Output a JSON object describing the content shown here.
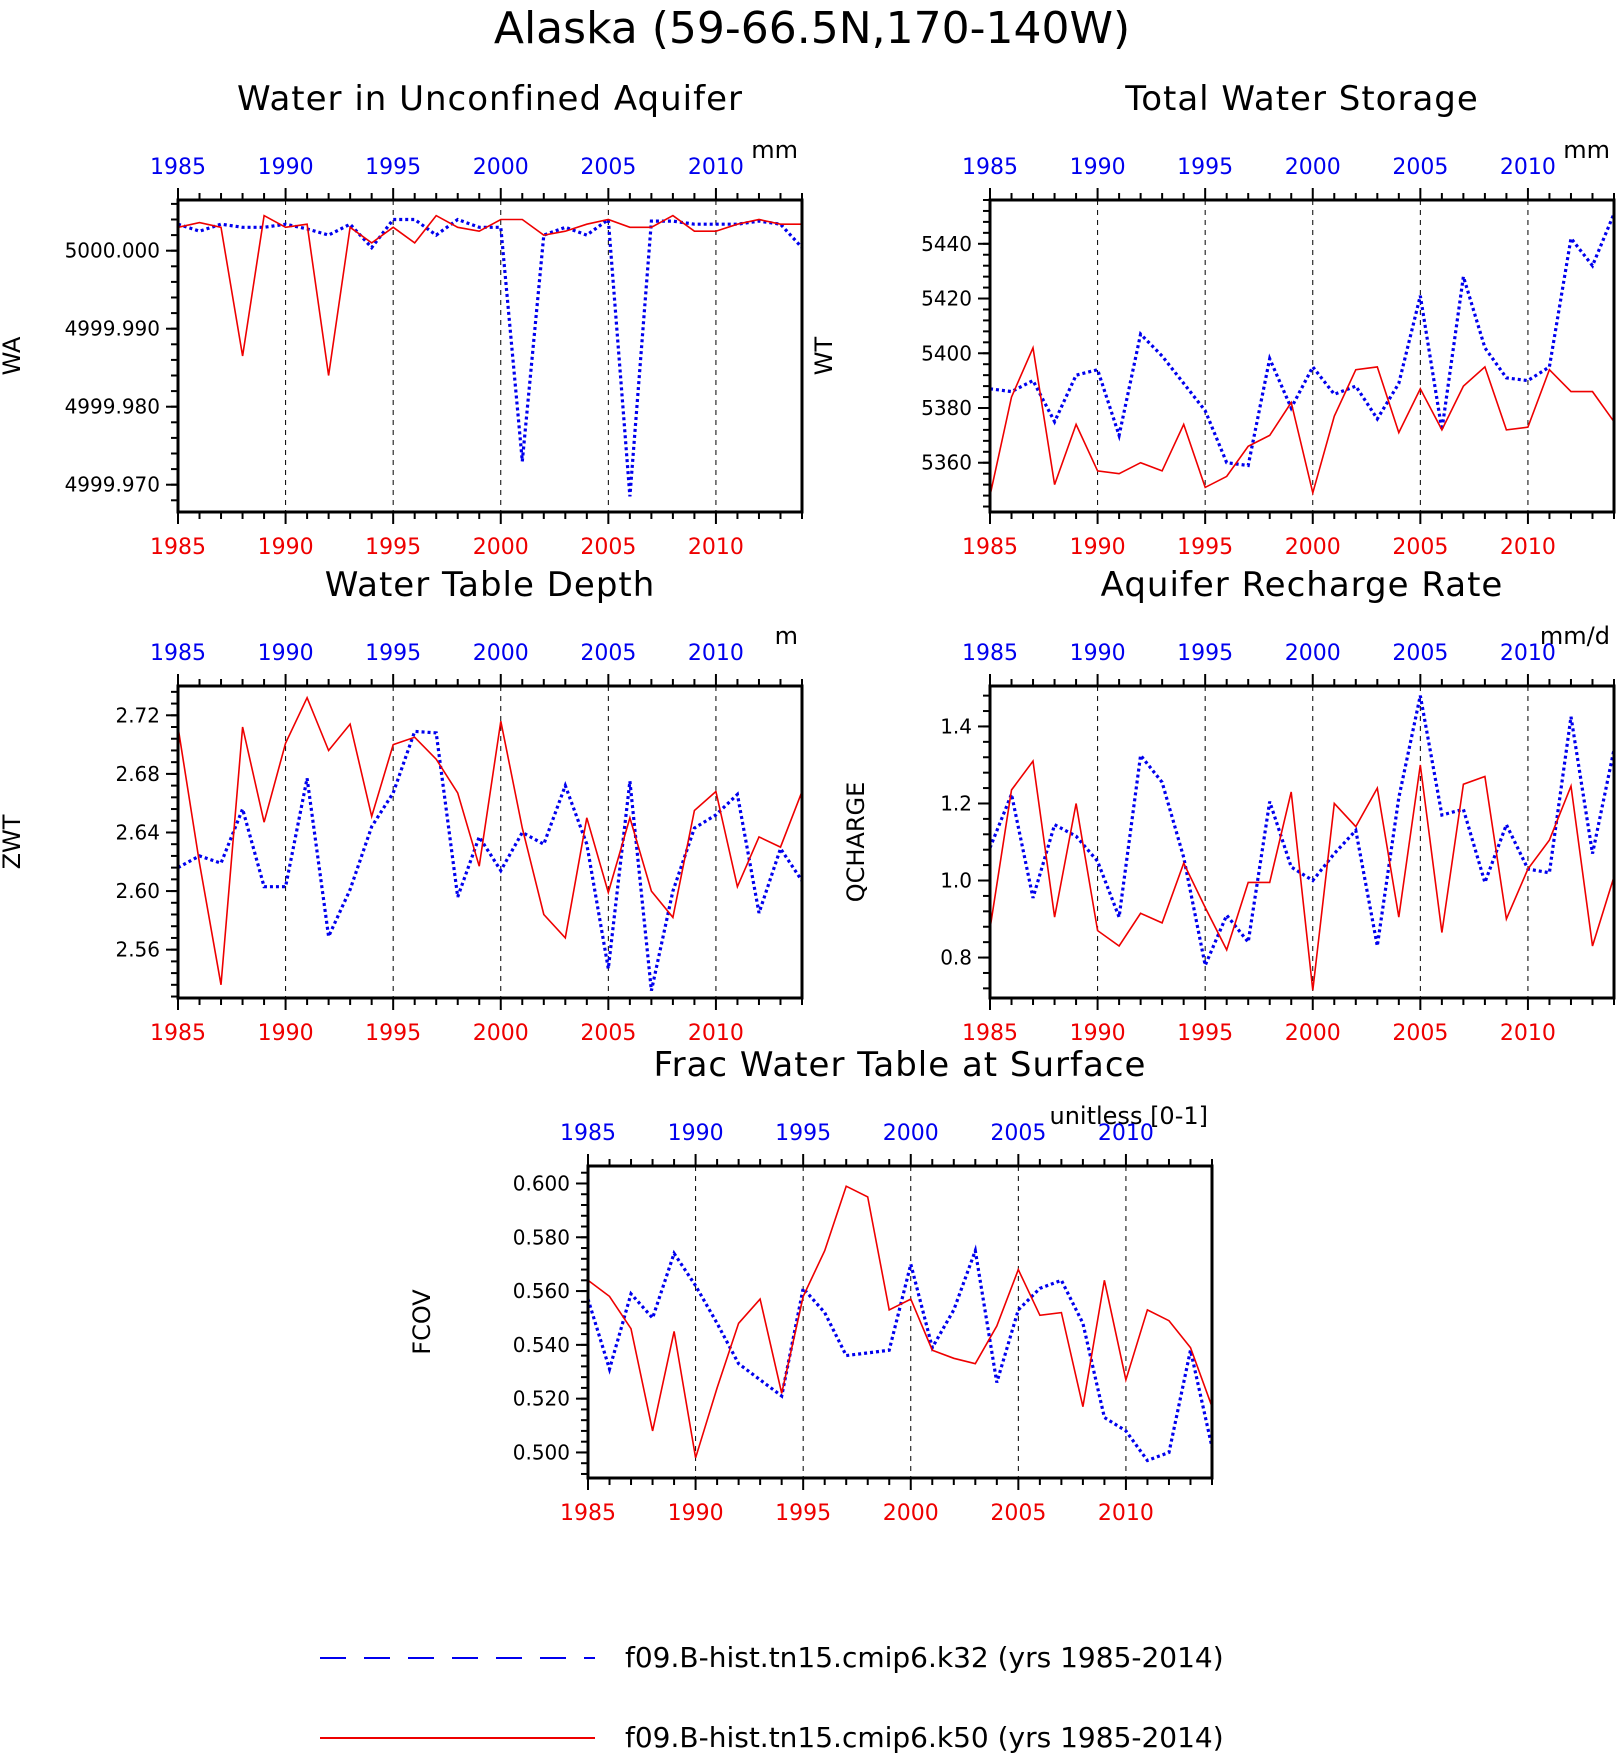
{
  "title": "Alaska (59-66.5N,170-140W)",
  "colors": {
    "k32": "#0000ee",
    "k50": "#ee0000",
    "axis": "#000000"
  },
  "legend": [
    {
      "key": "k32",
      "label": "f09.B-hist.tn15.cmip6.k32 (yrs 1985-2014)",
      "style": "dashed"
    },
    {
      "key": "k50",
      "label": "f09.B-hist.tn15.cmip6.k50 (yrs 1985-2014)",
      "style": "solid"
    }
  ],
  "chart_data": [
    {
      "type": "line",
      "title": "Water in Unconfined Aquifer",
      "units": "mm",
      "ylabel": "WA",
      "xlim": [
        1985,
        2014
      ],
      "ylim": [
        4999.9665,
        5000.0065
      ],
      "yticks": [
        4999.97,
        4999.98,
        4999.99,
        5000.0
      ],
      "ytick_labels": [
        "4999.970",
        "4999.980",
        "4999.990",
        "5000.000"
      ],
      "xticks": [
        1985,
        1990,
        1995,
        2000,
        2005,
        2010
      ],
      "x": [
        1985,
        1986,
        1987,
        1988,
        1989,
        1990,
        1991,
        1992,
        1993,
        1994,
        1995,
        1996,
        1997,
        1998,
        1999,
        2000,
        2001,
        2002,
        2003,
        2004,
        2005,
        2006,
        2007,
        2008,
        2009,
        2010,
        2011,
        2012,
        2013,
        2014
      ],
      "series": [
        {
          "key": "k32",
          "values": [
            5000.0034,
            5000.0025,
            5000.0034,
            5000.003,
            5000.003,
            5000.0034,
            5000.0028,
            5000.002,
            5000.0034,
            5000.0004,
            5000.004,
            5000.004,
            5000.002,
            5000.004,
            5000.003,
            5000.003,
            4999.973,
            5000.002,
            5000.003,
            5000.002,
            5000.004,
            4999.9685,
            5000.0038,
            5000.0038,
            5000.0034,
            5000.0034,
            5000.0034,
            5000.0038,
            5000.0034,
            5000.0004
          ]
        },
        {
          "key": "k50",
          "values": [
            5000.003,
            5000.0036,
            5000.003,
            4999.9865,
            5000.0045,
            5000.003,
            5000.0034,
            4999.984,
            5000.003,
            5000.001,
            5000.003,
            5000.001,
            5000.0045,
            5000.003,
            5000.0025,
            5000.004,
            5000.004,
            5000.002,
            5000.0025,
            5000.0034,
            5000.004,
            5000.003,
            5000.003,
            5000.0045,
            5000.0025,
            5000.0025,
            5000.0034,
            5000.004,
            5000.0034,
            5000.0034
          ]
        }
      ]
    },
    {
      "type": "line",
      "title": "Total Water Storage",
      "units": "mm",
      "ylabel": "WT",
      "xlim": [
        1985,
        2014
      ],
      "ylim": [
        5342,
        5456
      ],
      "yticks": [
        5360,
        5380,
        5400,
        5420,
        5440
      ],
      "ytick_labels": [
        "5360",
        "5380",
        "5400",
        "5420",
        "5440"
      ],
      "xticks": [
        1985,
        1990,
        1995,
        2000,
        2005,
        2010
      ],
      "x": [
        1985,
        1986,
        1987,
        1988,
        1989,
        1990,
        1991,
        1992,
        1993,
        1994,
        1995,
        1996,
        1997,
        1998,
        1999,
        2000,
        2001,
        2002,
        2003,
        2004,
        2005,
        2006,
        2007,
        2008,
        2009,
        2010,
        2011,
        2012,
        2013,
        2014
      ],
      "series": [
        {
          "key": "k32",
          "values": [
            5387,
            5386,
            5390,
            5375,
            5392,
            5394,
            5370,
            5407,
            5399,
            5389,
            5379,
            5360,
            5359,
            5398,
            5380,
            5395,
            5385,
            5388,
            5376,
            5389,
            5421,
            5372,
            5428,
            5402,
            5391,
            5390,
            5395,
            5442,
            5432,
            5451
          ]
        },
        {
          "key": "k50",
          "values": [
            5348,
            5384,
            5402,
            5352,
            5374,
            5357,
            5356,
            5360,
            5357,
            5374,
            5351,
            5355,
            5366,
            5370,
            5382,
            5349,
            5377,
            5394,
            5395,
            5371,
            5387,
            5372,
            5388,
            5395,
            5372,
            5373,
            5394,
            5386,
            5386,
            5375
          ]
        }
      ]
    },
    {
      "type": "line",
      "title": "Water Table Depth",
      "units": "m",
      "ylabel": "ZWT",
      "xlim": [
        1985,
        2014
      ],
      "ylim": [
        2.527,
        2.74
      ],
      "yticks": [
        2.56,
        2.6,
        2.64,
        2.68,
        2.72
      ],
      "ytick_labels": [
        "2.56",
        "2.60",
        "2.64",
        "2.68",
        "2.72"
      ],
      "xticks": [
        1985,
        1990,
        1995,
        2000,
        2005,
        2010
      ],
      "x": [
        1985,
        1986,
        1987,
        1988,
        1989,
        1990,
        1991,
        1992,
        1993,
        1994,
        1995,
        1996,
        1997,
        1998,
        1999,
        2000,
        2001,
        2002,
        2003,
        2004,
        2005,
        2006,
        2007,
        2008,
        2009,
        2010,
        2011,
        2012,
        2013,
        2014
      ],
      "series": [
        {
          "key": "k32",
          "values": [
            2.616,
            2.624,
            2.619,
            2.656,
            2.603,
            2.603,
            2.677,
            2.569,
            2.601,
            2.644,
            2.667,
            2.709,
            2.708,
            2.596,
            2.637,
            2.614,
            2.64,
            2.632,
            2.672,
            2.632,
            2.547,
            2.675,
            2.532,
            2.6,
            2.643,
            2.652,
            2.666,
            2.585,
            2.629,
            2.607
          ]
        },
        {
          "key": "k50",
          "values": [
            2.712,
            2.619,
            2.536,
            2.712,
            2.647,
            2.701,
            2.732,
            2.696,
            2.714,
            2.651,
            2.7,
            2.705,
            2.69,
            2.667,
            2.617,
            2.716,
            2.643,
            2.584,
            2.568,
            2.65,
            2.599,
            2.65,
            2.6,
            2.582,
            2.655,
            2.668,
            2.603,
            2.637,
            2.63,
            2.668
          ]
        }
      ]
    },
    {
      "type": "line",
      "title": "Aquifer Recharge Rate",
      "units": "mm/d",
      "ylabel": "QCHARGE",
      "xlim": [
        1985,
        2014
      ],
      "ylim": [
        0.695,
        1.505
      ],
      "yticks": [
        0.8,
        1.0,
        1.2,
        1.4
      ],
      "ytick_labels": [
        "0.8",
        "1.0",
        "1.2",
        "1.4"
      ],
      "xticks": [
        1985,
        1990,
        1995,
        2000,
        2005,
        2010
      ],
      "x": [
        1985,
        1986,
        1987,
        1988,
        1989,
        1990,
        1991,
        1992,
        1993,
        1994,
        1995,
        1996,
        1997,
        1998,
        1999,
        2000,
        2001,
        2002,
        2003,
        2004,
        2005,
        2006,
        2007,
        2008,
        2009,
        2010,
        2011,
        2012,
        2013,
        2014
      ],
      "series": [
        {
          "key": "k32",
          "values": [
            1.085,
            1.224,
            0.955,
            1.145,
            1.115,
            1.05,
            0.905,
            1.325,
            1.255,
            1.06,
            0.78,
            0.91,
            0.84,
            1.205,
            1.035,
            1.0,
            1.07,
            1.13,
            0.83,
            1.215,
            1.48,
            1.17,
            1.185,
            0.995,
            1.145,
            1.03,
            1.02,
            1.425,
            1.07,
            1.34
          ]
        },
        {
          "key": "k50",
          "values": [
            0.875,
            1.235,
            1.31,
            0.905,
            1.2,
            0.87,
            0.83,
            0.915,
            0.89,
            1.045,
            0.93,
            0.82,
            0.995,
            0.995,
            1.23,
            0.715,
            1.2,
            1.14,
            1.24,
            0.905,
            1.3,
            0.865,
            1.25,
            1.27,
            0.9,
            1.03,
            1.105,
            1.245,
            0.83,
            1.01
          ]
        }
      ]
    },
    {
      "type": "line",
      "title": "Frac Water Table at Surface",
      "units": "unitless [0-1]",
      "ylabel": "FCOV",
      "xlim": [
        1985,
        2014
      ],
      "ylim": [
        0.4905,
        0.6065
      ],
      "yticks": [
        0.5,
        0.52,
        0.54,
        0.56,
        0.58,
        0.6
      ],
      "ytick_labels": [
        "0.500",
        "0.520",
        "0.540",
        "0.560",
        "0.580",
        "0.600"
      ],
      "xticks": [
        1985,
        1990,
        1995,
        2000,
        2005,
        2010
      ],
      "x": [
        1985,
        1986,
        1987,
        1988,
        1989,
        1990,
        1991,
        1992,
        1993,
        1994,
        1995,
        1996,
        1997,
        1998,
        1999,
        2000,
        2001,
        2002,
        2003,
        2004,
        2005,
        2006,
        2007,
        2008,
        2009,
        2010,
        2011,
        2012,
        2013,
        2014
      ],
      "series": [
        {
          "key": "k32",
          "values": [
            0.557,
            0.531,
            0.559,
            0.55,
            0.574,
            0.562,
            0.548,
            0.533,
            0.527,
            0.521,
            0.561,
            0.552,
            0.536,
            0.537,
            0.538,
            0.57,
            0.539,
            0.553,
            0.575,
            0.526,
            0.553,
            0.561,
            0.564,
            0.548,
            0.513,
            0.508,
            0.497,
            0.5,
            0.538,
            0.502
          ]
        },
        {
          "key": "k50",
          "values": [
            0.564,
            0.558,
            0.546,
            0.508,
            0.545,
            0.498,
            0.524,
            0.548,
            0.557,
            0.522,
            0.558,
            0.575,
            0.599,
            0.595,
            0.553,
            0.557,
            0.538,
            0.535,
            0.533,
            0.547,
            0.568,
            0.551,
            0.552,
            0.517,
            0.564,
            0.527,
            0.553,
            0.549,
            0.539,
            0.517
          ]
        }
      ]
    }
  ]
}
